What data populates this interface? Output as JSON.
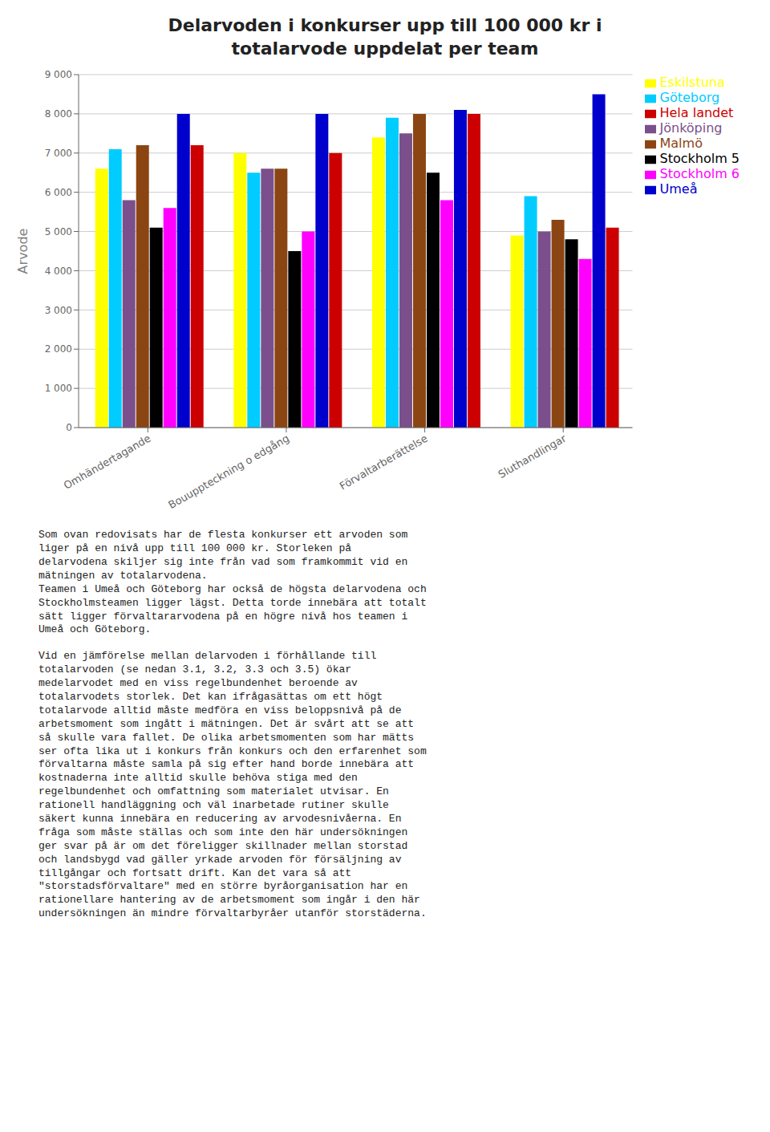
{
  "chart_data": {
    "type": "bar",
    "title": "Delarvoden i konkurser upp till 100 000 kr i\ntotalarvode uppdelat per team",
    "ylabel": "Arvode",
    "categories": [
      "Omhändertagande",
      "Bouuppteckning o edgång",
      "Förvaltarberättelse",
      "Sluthandlingar"
    ],
    "series": [
      {
        "name": "Eskilstuna",
        "color": "#FFFF00",
        "values": [
          6600,
          7000,
          7400,
          4900
        ]
      },
      {
        "name": "Göteborg",
        "color": "#00CCFF",
        "values": [
          7100,
          6500,
          7900,
          5900
        ]
      },
      {
        "name": "Jönköping",
        "color": "#7B4F8B",
        "values": [
          5800,
          6600,
          7500,
          5000
        ]
      },
      {
        "name": "Malmö",
        "color": "#8B4513",
        "values": [
          7200,
          6600,
          8000,
          5300
        ]
      },
      {
        "name": "Stockholm 5",
        "color": "#000000",
        "values": [
          5100,
          4500,
          6500,
          4800
        ]
      },
      {
        "name": "Stockholm 6",
        "color": "#FF00FF",
        "values": [
          5600,
          5000,
          5800,
          4300
        ]
      },
      {
        "name": "Umeå",
        "color": "#0000CC",
        "values": [
          8000,
          8000,
          8100,
          8500
        ]
      },
      {
        "name": "Hela landet",
        "color": "#CC0000",
        "values": [
          7200,
          7000,
          8000,
          5100
        ]
      }
    ],
    "ylim": [
      0,
      9000
    ],
    "yticks": [
      0,
      {
        "value": 1000,
        "label": "1 000"
      },
      {
        "value": 2000,
        "label": "2 000"
      },
      {
        "value": 3000,
        "label": "3 000"
      },
      {
        "value": 4000,
        "label": "4 000"
      },
      {
        "value": 5000,
        "label": "5 000"
      },
      {
        "value": 6000,
        "label": "6 000"
      },
      {
        "value": 7000,
        "label": "7 000"
      },
      {
        "value": 8000,
        "label": "8 000"
      },
      {
        "value": 9000,
        "label": "9 000"
      }
    ],
    "grid": true,
    "legend": "right",
    "annotations": [
      "Som ovan redovisats har de flesta konkurser ett arvoden som\nliger på en nivå upp till 100 000 kr. Storleken på\ndelarvodena skiljer sig inte från vad som framkommit vid en\nmätningen av totalarvodena.\nTeamen i Umeå och Göteborg har också de högsta delarvodena och\nStockholmsteamen ligger lägst. Detta torde innebära att totalt\nsätt ligger förvaltararvodena på en högre nivå hos teamen i\nUmeå och Göteborg.",
      "Vid en jämförelse mellan delarvoden i förhållande till\ntotalarvoden (se nedan 3.1, 3.2, 3.3 och 3.5) ökar\nmedelarvodet med en viss regelbundenhet beroende av\ntotalarvodets storlek. Det kan ifrågasättas om ett högt\ntotalarvode alltid måste medföra en viss beloppsnivå på de\narbetsmoment som ingått i mätningen. Det är svårt att se att\nså skulle vara fallet. De olika arbetsmomenten som har mätts\nser ofta lika ut i konkurs från konkurs och den erfarenhet som\nförvaltarna måste samla på sig efter hand borde innebära att\nkostnaderna inte alltid skulle behöva stiga med den\nregelbundenhet och omfattning som materialet utvisar. En\nrationell handläggning och väl inarbetade rutiner skulle\nsäkert kunna innebära en reducering av arvodesnivåerna. En\nfråga som måste ställas och som inte den här undersökningen\nger svar på är om det föreligger skillnader mellan storstad\noch landsbygd vad gäller yrkade arvoden för försäljning av\ntillgångar och fortsatt drift. Kan det vara så att\n\"storstadsförvaltare\" med en större byråorganisation har en\nrationellare hantering av de arbetsmoment som ingår i den här\nundersökningen än mindre förvaltarbyråer utanför storstäderna."
    ]
  }
}
